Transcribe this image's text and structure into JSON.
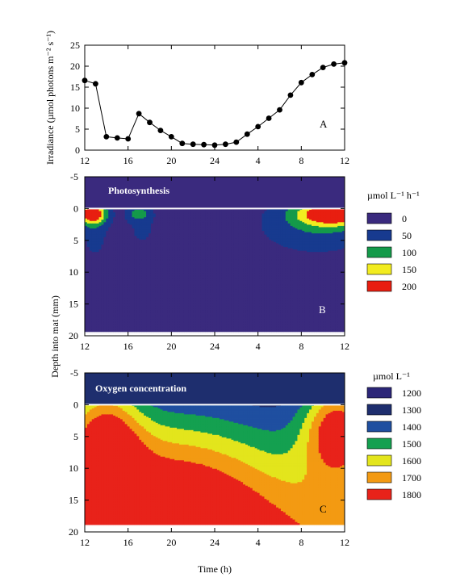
{
  "colors": {
    "photo_levels": [
      "#3a2a7e",
      "#173a8f",
      "#149a4a",
      "#f2ec20",
      "#e81e10"
    ],
    "oxygen_levels": [
      "#2c2678",
      "#1e2e6e",
      "#1f4fa0",
      "#14a050",
      "#e3e51c",
      "#f39a12",
      "#e8221a"
    ]
  },
  "chart_data": [
    {
      "id": "A",
      "type": "line",
      "panel_label": "A",
      "ylabel": "Irradiance (µmol photons m⁻² s⁻¹)",
      "xticks": [
        "12",
        "16",
        "20",
        "24",
        "4",
        "8",
        "12"
      ],
      "yticks": [
        "0",
        "5",
        "10",
        "15",
        "20",
        "25"
      ],
      "xlim": [
        12,
        36
      ],
      "ylim": [
        0,
        25
      ],
      "x": [
        12,
        13,
        14,
        15,
        16,
        17,
        18,
        19,
        20,
        21,
        22,
        23,
        24,
        25,
        26,
        27,
        28,
        29,
        30,
        31,
        32,
        33,
        34,
        35,
        36
      ],
      "y": [
        16.6,
        15.8,
        3.2,
        2.9,
        2.7,
        8.7,
        6.6,
        4.7,
        3.2,
        1.6,
        1.4,
        1.3,
        1.2,
        1.4,
        1.9,
        3.8,
        5.6,
        7.6,
        9.6,
        13.1,
        16.1,
        18.0,
        19.7,
        20.5,
        20.8
      ]
    },
    {
      "id": "B",
      "type": "heatmap",
      "panel_label": "B",
      "title": "Photosynthesis",
      "legend_title": "µmol L⁻¹ h⁻¹",
      "legend_entries": [
        "0",
        "50",
        "100",
        "150",
        "200"
      ],
      "xticks": [
        "12",
        "16",
        "20",
        "24",
        "4",
        "8",
        "12"
      ],
      "yticks": [
        "-5",
        "0",
        "5",
        "10",
        "15",
        "20"
      ],
      "xlim": [
        12,
        36
      ],
      "ylim": [
        -5,
        20
      ],
      "surface_depth": 0,
      "max_depth": 19.5,
      "hotspots": [
        {
          "x": 12.7,
          "depth": 0.8,
          "sx": 0.9,
          "sz": 1.2,
          "amp": 220
        },
        {
          "x": 12.9,
          "depth": 3.5,
          "sx": 0.9,
          "sz": 3.5,
          "amp": 40
        },
        {
          "x": 17.0,
          "depth": 0.8,
          "sx": 0.7,
          "sz": 0.8,
          "amp": 90
        },
        {
          "x": 17.3,
          "depth": 3.5,
          "sx": 1.5,
          "sz": 3.0,
          "amp": 28
        },
        {
          "x": 35.0,
          "depth": 0.8,
          "sx": 2.4,
          "sz": 1.3,
          "amp": 215
        },
        {
          "x": 33.5,
          "depth": 2.8,
          "sx": 3.5,
          "sz": 2.8,
          "amp": 70
        }
      ]
    },
    {
      "id": "C",
      "type": "heatmap",
      "panel_label": "C",
      "title": "Oxygen concentration",
      "legend_title": "µmol L⁻¹",
      "legend_entries": [
        "1200",
        "1300",
        "1400",
        "1500",
        "1600",
        "1700",
        "1800"
      ],
      "xlabel": "Time (h)",
      "xticks": [
        "12",
        "16",
        "20",
        "24",
        "4",
        "8",
        "12"
      ],
      "yticks": [
        "-5",
        "0",
        "5",
        "10",
        "15",
        "20"
      ],
      "xlim": [
        12,
        36
      ],
      "ylim": [
        -5,
        20
      ],
      "surface_depth": 0,
      "max_depth": 19,
      "hotspots": [
        {
          "x": 13.8,
          "depth": 6.0,
          "sx": 2.4,
          "sz": 7.0,
          "amp": 430
        },
        {
          "x": 20.0,
          "depth": 12.0,
          "sx": 6.0,
          "sz": 8.0,
          "amp": 290
        },
        {
          "x": 35.3,
          "depth": 3.5,
          "sx": 2.2,
          "sz": 5.5,
          "amp": 480
        },
        {
          "x": 27.0,
          "depth": 19.0,
          "sx": 6.0,
          "sz": 7.0,
          "amp": 110
        }
      ],
      "base_value": 1300,
      "depth_gain": 18
    }
  ],
  "shared_ylabel": "Depth into mat (mm)"
}
